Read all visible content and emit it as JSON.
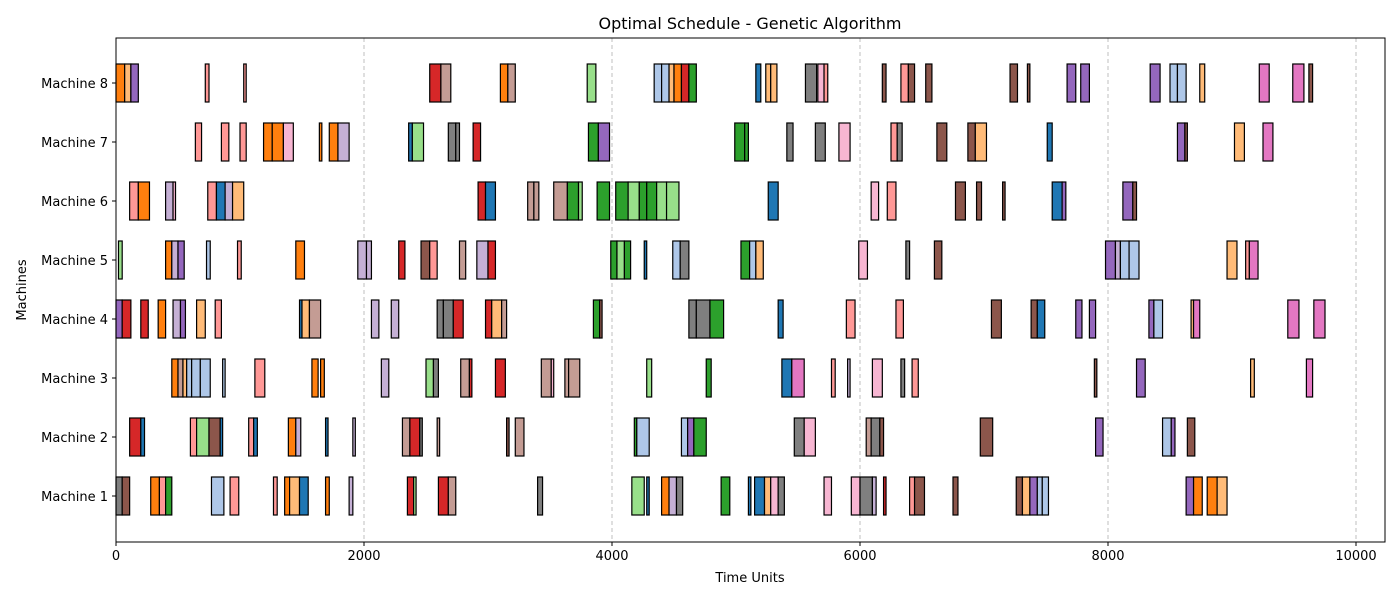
{
  "chart_data": {
    "type": "gantt",
    "title": "Optimal Schedule - Genetic Algorithm",
    "xlabel": "Time Units",
    "ylabel": "Machines",
    "xlim": [
      0,
      10250
    ],
    "xticks": [
      0,
      2000,
      4000,
      6000,
      8000,
      10000
    ],
    "grid": "x-dashed",
    "machines": [
      "Machine 1",
      "Machine 2",
      "Machine 3",
      "Machine 4",
      "Machine 5",
      "Machine 6",
      "Machine 7",
      "Machine 8"
    ],
    "palette": [
      "#1f77b4",
      "#ff7f0e",
      "#2ca02c",
      "#d62728",
      "#9467bd",
      "#8c564b",
      "#e377c2",
      "#7f7f7f",
      "#aec7e8",
      "#ffbb78",
      "#98df8a",
      "#ff9896",
      "#c5b0d5",
      "#c49c94",
      "#f7b6d2"
    ],
    "tasks": [
      [
        1,
        0,
        50,
        7
      ],
      [
        1,
        50,
        110,
        5
      ],
      [
        1,
        280,
        350,
        1
      ],
      [
        1,
        350,
        400,
        11
      ],
      [
        1,
        400,
        450,
        2
      ],
      [
        1,
        770,
        870,
        8
      ],
      [
        1,
        920,
        990,
        11
      ],
      [
        1,
        1270,
        1300,
        11
      ],
      [
        1,
        1360,
        1400,
        1
      ],
      [
        1,
        1400,
        1480,
        9
      ],
      [
        1,
        1480,
        1550,
        0
      ],
      [
        1,
        1690,
        1720,
        1
      ],
      [
        1,
        1880,
        1910,
        12
      ],
      [
        1,
        2350,
        2400,
        3
      ],
      [
        1,
        2400,
        2420,
        10
      ],
      [
        1,
        2600,
        2680,
        3
      ],
      [
        1,
        2680,
        2740,
        13
      ],
      [
        1,
        3400,
        3440,
        7
      ],
      [
        1,
        4160,
        4260,
        10
      ],
      [
        1,
        4280,
        4300,
        0
      ],
      [
        1,
        4400,
        4460,
        1
      ],
      [
        1,
        4460,
        4520,
        12
      ],
      [
        1,
        4520,
        4570,
        7
      ],
      [
        1,
        4880,
        4950,
        2
      ],
      [
        1,
        5100,
        5120,
        0
      ],
      [
        1,
        5150,
        5230,
        0
      ],
      [
        1,
        5230,
        5280,
        9
      ],
      [
        1,
        5280,
        5340,
        14
      ],
      [
        1,
        5340,
        5390,
        7
      ],
      [
        1,
        5710,
        5770,
        14
      ],
      [
        1,
        5930,
        6000,
        14
      ],
      [
        1,
        6000,
        6100,
        7
      ],
      [
        1,
        6100,
        6130,
        12
      ],
      [
        1,
        6190,
        6210,
        3
      ],
      [
        1,
        6400,
        6440,
        11
      ],
      [
        1,
        6440,
        6520,
        5
      ],
      [
        1,
        6750,
        6790,
        5
      ],
      [
        1,
        7260,
        7310,
        5
      ],
      [
        1,
        7310,
        7370,
        9
      ],
      [
        1,
        7370,
        7430,
        4
      ],
      [
        1,
        7430,
        7470,
        8
      ],
      [
        1,
        7470,
        7520,
        8
      ],
      [
        1,
        8630,
        8690,
        4
      ],
      [
        1,
        8690,
        8760,
        1
      ],
      [
        1,
        8800,
        8880,
        1
      ],
      [
        1,
        8880,
        8960,
        9
      ],
      [
        2,
        110,
        200,
        3
      ],
      [
        2,
        200,
        230,
        0
      ],
      [
        2,
        600,
        650,
        11
      ],
      [
        2,
        650,
        750,
        10
      ],
      [
        2,
        750,
        840,
        5
      ],
      [
        2,
        840,
        860,
        0
      ],
      [
        2,
        1070,
        1110,
        11
      ],
      [
        2,
        1110,
        1140,
        0
      ],
      [
        2,
        1390,
        1450,
        1
      ],
      [
        2,
        1450,
        1490,
        12
      ],
      [
        2,
        1690,
        1710,
        0
      ],
      [
        2,
        1910,
        1930,
        12
      ],
      [
        2,
        2310,
        2370,
        13
      ],
      [
        2,
        2370,
        2450,
        3
      ],
      [
        2,
        2450,
        2470,
        7
      ],
      [
        2,
        2590,
        2610,
        13
      ],
      [
        2,
        3150,
        3170,
        5
      ],
      [
        2,
        3220,
        3290,
        13
      ],
      [
        2,
        4180,
        4200,
        2
      ],
      [
        2,
        4200,
        4300,
        8
      ],
      [
        2,
        4560,
        4610,
        8
      ],
      [
        2,
        4610,
        4660,
        4
      ],
      [
        2,
        4660,
        4760,
        2
      ],
      [
        2,
        5470,
        5550,
        7
      ],
      [
        2,
        5550,
        5640,
        14
      ],
      [
        2,
        6050,
        6090,
        13
      ],
      [
        2,
        6090,
        6160,
        7
      ],
      [
        2,
        6160,
        6190,
        5
      ],
      [
        2,
        6970,
        7070,
        5
      ],
      [
        2,
        7900,
        7960,
        4
      ],
      [
        2,
        8440,
        8510,
        8
      ],
      [
        2,
        8510,
        8540,
        4
      ],
      [
        2,
        8640,
        8700,
        5
      ],
      [
        3,
        450,
        500,
        1
      ],
      [
        3,
        500,
        540,
        13
      ],
      [
        3,
        540,
        570,
        9
      ],
      [
        3,
        570,
        610,
        8
      ],
      [
        3,
        610,
        680,
        8
      ],
      [
        3,
        680,
        760,
        8
      ],
      [
        3,
        860,
        880,
        8
      ],
      [
        3,
        1120,
        1200,
        11
      ],
      [
        3,
        1580,
        1630,
        1
      ],
      [
        3,
        1650,
        1680,
        1
      ],
      [
        3,
        2140,
        2200,
        12
      ],
      [
        3,
        2500,
        2560,
        10
      ],
      [
        3,
        2560,
        2600,
        7
      ],
      [
        3,
        2780,
        2850,
        13
      ],
      [
        3,
        2850,
        2870,
        3
      ],
      [
        3,
        3060,
        3140,
        3
      ],
      [
        3,
        3430,
        3510,
        13
      ],
      [
        3,
        3510,
        3530,
        14
      ],
      [
        3,
        3620,
        3650,
        13
      ],
      [
        3,
        3650,
        3740,
        13
      ],
      [
        3,
        4280,
        4320,
        10
      ],
      [
        3,
        4760,
        4800,
        2
      ],
      [
        3,
        5370,
        5450,
        0
      ],
      [
        3,
        5450,
        5550,
        6
      ],
      [
        3,
        5770,
        5800,
        11
      ],
      [
        3,
        5900,
        5920,
        12
      ],
      [
        3,
        6100,
        6180,
        14
      ],
      [
        3,
        6330,
        6360,
        7
      ],
      [
        3,
        6420,
        6470,
        11
      ],
      [
        3,
        7890,
        7910,
        5
      ],
      [
        3,
        8230,
        8300,
        4
      ],
      [
        3,
        9150,
        9180,
        9
      ],
      [
        3,
        9600,
        9650,
        6
      ],
      [
        4,
        0,
        50,
        4
      ],
      [
        4,
        50,
        120,
        3
      ],
      [
        4,
        200,
        260,
        3
      ],
      [
        4,
        340,
        400,
        1
      ],
      [
        4,
        460,
        520,
        12
      ],
      [
        4,
        520,
        560,
        4
      ],
      [
        4,
        650,
        720,
        9
      ],
      [
        4,
        800,
        850,
        11
      ],
      [
        4,
        1480,
        1500,
        0
      ],
      [
        4,
        1500,
        1560,
        9
      ],
      [
        4,
        1560,
        1650,
        13
      ],
      [
        4,
        2060,
        2120,
        12
      ],
      [
        4,
        2220,
        2280,
        12
      ],
      [
        4,
        2590,
        2640,
        7
      ],
      [
        4,
        2640,
        2720,
        7
      ],
      [
        4,
        2720,
        2800,
        3
      ],
      [
        4,
        2980,
        3030,
        3
      ],
      [
        4,
        3030,
        3110,
        9
      ],
      [
        4,
        3110,
        3150,
        13
      ],
      [
        4,
        3850,
        3900,
        2
      ],
      [
        4,
        3900,
        3920,
        5
      ],
      [
        4,
        4620,
        4680,
        7
      ],
      [
        4,
        4680,
        4790,
        7
      ],
      [
        4,
        4790,
        4900,
        2
      ],
      [
        4,
        5340,
        5380,
        0
      ],
      [
        4,
        5890,
        5960,
        11
      ],
      [
        4,
        6290,
        6350,
        11
      ],
      [
        4,
        7060,
        7140,
        5
      ],
      [
        4,
        7380,
        7430,
        5
      ],
      [
        4,
        7430,
        7490,
        0
      ],
      [
        4,
        7740,
        7790,
        4
      ],
      [
        4,
        7850,
        7900,
        4
      ],
      [
        4,
        8330,
        8370,
        4
      ],
      [
        4,
        8370,
        8440,
        8
      ],
      [
        4,
        8670,
        8690,
        9
      ],
      [
        4,
        8690,
        8740,
        6
      ],
      [
        4,
        9450,
        9540,
        6
      ],
      [
        4,
        9660,
        9750,
        6
      ],
      [
        5,
        20,
        50,
        10
      ],
      [
        5,
        400,
        450,
        1
      ],
      [
        5,
        450,
        500,
        12
      ],
      [
        5,
        500,
        550,
        4
      ],
      [
        5,
        730,
        760,
        8
      ],
      [
        5,
        980,
        1010,
        11
      ],
      [
        5,
        1450,
        1520,
        1
      ],
      [
        5,
        1950,
        2020,
        12
      ],
      [
        5,
        2020,
        2060,
        12
      ],
      [
        5,
        2280,
        2330,
        3
      ],
      [
        5,
        2460,
        2530,
        5
      ],
      [
        5,
        2530,
        2590,
        11
      ],
      [
        5,
        2770,
        2820,
        13
      ],
      [
        5,
        2910,
        3000,
        12
      ],
      [
        5,
        3000,
        3060,
        3
      ],
      [
        5,
        3990,
        4040,
        2
      ],
      [
        5,
        4040,
        4100,
        10
      ],
      [
        5,
        4100,
        4150,
        2
      ],
      [
        5,
        4260,
        4280,
        0
      ],
      [
        5,
        4490,
        4550,
        8
      ],
      [
        5,
        4550,
        4620,
        7
      ],
      [
        5,
        5040,
        5110,
        2
      ],
      [
        5,
        5110,
        5160,
        8
      ],
      [
        5,
        5160,
        5220,
        9
      ],
      [
        5,
        5990,
        6060,
        14
      ],
      [
        5,
        6370,
        6400,
        7
      ],
      [
        5,
        6600,
        6660,
        5
      ],
      [
        5,
        7980,
        8060,
        4
      ],
      [
        5,
        8060,
        8100,
        12
      ],
      [
        5,
        8100,
        8170,
        8
      ],
      [
        5,
        8170,
        8250,
        8
      ],
      [
        5,
        8960,
        9040,
        9
      ],
      [
        5,
        9110,
        9140,
        11
      ],
      [
        5,
        9140,
        9210,
        6
      ],
      [
        6,
        110,
        180,
        11
      ],
      [
        6,
        180,
        270,
        1
      ],
      [
        6,
        400,
        460,
        12
      ],
      [
        6,
        460,
        480,
        14
      ],
      [
        6,
        740,
        810,
        11
      ],
      [
        6,
        810,
        880,
        0
      ],
      [
        6,
        880,
        940,
        12
      ],
      [
        6,
        940,
        1030,
        9
      ],
      [
        6,
        2920,
        2980,
        3
      ],
      [
        6,
        2980,
        3060,
        0
      ],
      [
        6,
        3320,
        3370,
        13
      ],
      [
        6,
        3370,
        3410,
        13
      ],
      [
        6,
        3530,
        3640,
        13
      ],
      [
        6,
        3640,
        3730,
        2
      ],
      [
        6,
        3730,
        3760,
        10
      ],
      [
        6,
        3880,
        3980,
        2
      ],
      [
        6,
        4030,
        4130,
        2
      ],
      [
        6,
        4130,
        4220,
        10
      ],
      [
        6,
        4220,
        4280,
        2
      ],
      [
        6,
        4280,
        4360,
        2
      ],
      [
        6,
        4360,
        4440,
        10
      ],
      [
        6,
        4440,
        4540,
        10
      ],
      [
        6,
        5260,
        5340,
        0
      ],
      [
        6,
        6090,
        6150,
        14
      ],
      [
        6,
        6220,
        6290,
        11
      ],
      [
        6,
        6770,
        6850,
        5
      ],
      [
        6,
        6940,
        6980,
        5
      ],
      [
        6,
        7150,
        7170,
        5
      ],
      [
        6,
        7550,
        7630,
        0
      ],
      [
        6,
        7630,
        7660,
        4
      ],
      [
        6,
        8120,
        8200,
        4
      ],
      [
        6,
        8200,
        8230,
        5
      ],
      [
        7,
        640,
        690,
        11
      ],
      [
        7,
        850,
        910,
        11
      ],
      [
        7,
        1000,
        1050,
        11
      ],
      [
        7,
        1190,
        1260,
        1
      ],
      [
        7,
        1260,
        1350,
        1
      ],
      [
        7,
        1350,
        1430,
        14
      ],
      [
        7,
        1640,
        1660,
        1
      ],
      [
        7,
        1720,
        1790,
        1
      ],
      [
        7,
        1790,
        1880,
        12
      ],
      [
        7,
        2360,
        2390,
        0
      ],
      [
        7,
        2390,
        2480,
        10
      ],
      [
        7,
        2680,
        2740,
        7
      ],
      [
        7,
        2740,
        2770,
        7
      ],
      [
        7,
        2880,
        2940,
        3
      ],
      [
        7,
        3810,
        3890,
        2
      ],
      [
        7,
        3890,
        3980,
        4
      ],
      [
        7,
        4990,
        5070,
        2
      ],
      [
        7,
        5070,
        5100,
        2
      ],
      [
        7,
        5410,
        5460,
        7
      ],
      [
        7,
        5640,
        5720,
        7
      ],
      [
        7,
        5830,
        5920,
        14
      ],
      [
        7,
        6250,
        6300,
        11
      ],
      [
        7,
        6300,
        6340,
        7
      ],
      [
        7,
        6620,
        6700,
        5
      ],
      [
        7,
        6870,
        6930,
        5
      ],
      [
        7,
        6930,
        7020,
        9
      ],
      [
        7,
        7510,
        7550,
        0
      ],
      [
        7,
        8560,
        8620,
        4
      ],
      [
        7,
        8620,
        8640,
        5
      ],
      [
        7,
        9020,
        9100,
        9
      ],
      [
        7,
        9250,
        9330,
        6
      ],
      [
        8,
        0,
        70,
        1
      ],
      [
        8,
        70,
        120,
        9
      ],
      [
        8,
        120,
        180,
        4
      ],
      [
        8,
        720,
        750,
        11
      ],
      [
        8,
        1030,
        1050,
        11
      ],
      [
        8,
        2530,
        2620,
        3
      ],
      [
        8,
        2620,
        2700,
        13
      ],
      [
        8,
        3100,
        3160,
        1
      ],
      [
        8,
        3160,
        3220,
        13
      ],
      [
        8,
        3800,
        3870,
        10
      ],
      [
        8,
        4340,
        4400,
        8
      ],
      [
        8,
        4400,
        4460,
        8
      ],
      [
        8,
        4460,
        4500,
        9
      ],
      [
        8,
        4500,
        4560,
        1
      ],
      [
        8,
        4560,
        4620,
        3
      ],
      [
        8,
        4620,
        4680,
        2
      ],
      [
        8,
        5160,
        5200,
        0
      ],
      [
        8,
        5240,
        5280,
        9
      ],
      [
        8,
        5280,
        5330,
        9
      ],
      [
        8,
        5560,
        5650,
        7
      ],
      [
        8,
        5660,
        5710,
        14
      ],
      [
        8,
        5710,
        5740,
        11
      ],
      [
        8,
        6180,
        6210,
        5
      ],
      [
        8,
        6330,
        6390,
        11
      ],
      [
        8,
        6390,
        6440,
        5
      ],
      [
        8,
        6530,
        6580,
        5
      ],
      [
        8,
        7210,
        7270,
        5
      ],
      [
        8,
        7350,
        7370,
        5
      ],
      [
        8,
        7670,
        7740,
        4
      ],
      [
        8,
        7780,
        7850,
        4
      ],
      [
        8,
        8340,
        8420,
        4
      ],
      [
        8,
        8500,
        8560,
        8
      ],
      [
        8,
        8560,
        8630,
        8
      ],
      [
        8,
        8740,
        8780,
        9
      ],
      [
        8,
        9220,
        9300,
        6
      ],
      [
        8,
        9490,
        9580,
        6
      ],
      [
        8,
        9620,
        9650,
        5
      ]
    ]
  }
}
